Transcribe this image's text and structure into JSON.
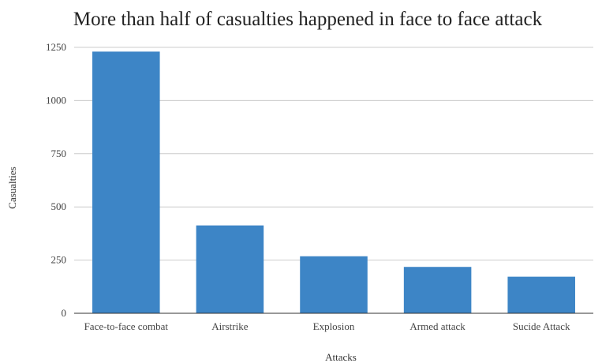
{
  "chart_data": {
    "type": "bar",
    "title": "More than half of casualties happened in face to face attack",
    "xlabel": "Attacks",
    "ylabel": "Casualties",
    "categories": [
      "Face-to-face combat",
      "Airstrike",
      "Explosion",
      "Armed attack",
      "Sucide Attack"
    ],
    "values": [
      1230,
      413,
      268,
      218,
      172
    ],
    "ylim": [
      0,
      1250
    ],
    "yticks": [
      0,
      250,
      500,
      750,
      1000,
      1250
    ],
    "grid": true,
    "legend": "none",
    "bar_color": "#3d85c6"
  }
}
